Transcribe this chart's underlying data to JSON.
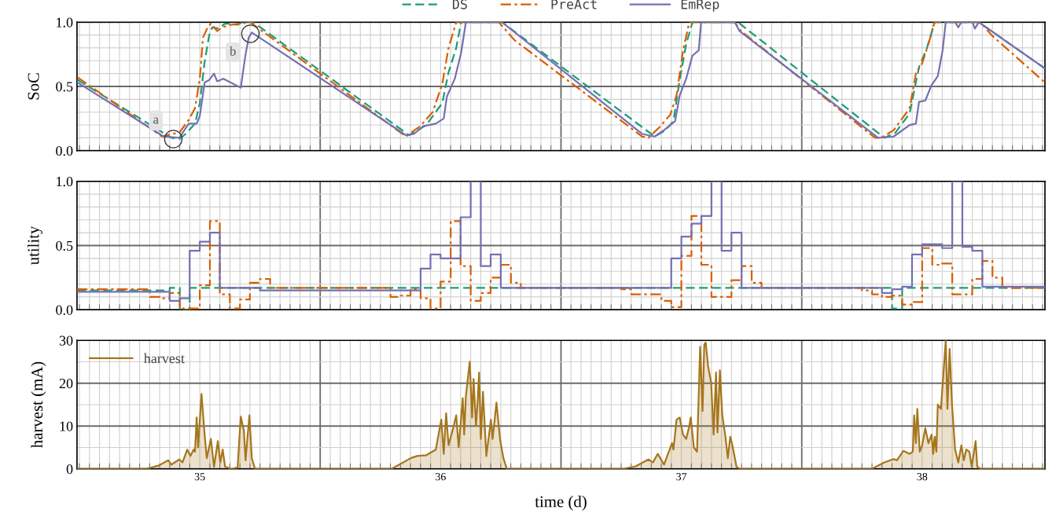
{
  "chart_data": [
    {
      "type": "line",
      "ylabel": "SoC",
      "xlim": [
        34.49,
        38.51
      ],
      "ylim": [
        0,
        1
      ],
      "xticks": [
        35,
        {
          "value": 35.5,
          "label": null
        },
        36,
        {
          "value": 36.5,
          "label": null
        },
        37,
        {
          "value": 37.5,
          "label": null
        },
        38
      ],
      "yticks": [
        {
          "value": 0,
          "label": "0.0"
        },
        {
          "value": 0.5,
          "label": "0.5"
        },
        {
          "value": 1,
          "label": "1.0"
        }
      ],
      "tick_labels": "y",
      "grid": true,
      "legend": "top",
      "annotations": [
        {
          "text": "a",
          "x": 34.89,
          "y": 0.09
        },
        {
          "text": "b",
          "x": 35.21,
          "y": 0.91
        }
      ],
      "series": [
        {
          "name": "DS",
          "color": "#1b9e77",
          "line_style": "dashed",
          "x": [
            34.493,
            34.882,
            34.915,
            34.941,
            34.98,
            35.0,
            35.02,
            35.039,
            35.052,
            35.078,
            35.105,
            35.157,
            35.176,
            35.222,
            35.869,
            35.941,
            36.007,
            36.033,
            36.065,
            36.085,
            36.255,
            36.889,
            36.935,
            36.967,
            36.993,
            37.02,
            37.046,
            37.235,
            37.843,
            37.889,
            37.948,
            37.987,
            38.02,
            38.052,
            38.235,
            38.51
          ],
          "values": [
            0.55,
            0.1,
            0.09,
            0.13,
            0.21,
            0.37,
            0.69,
            0.9,
            0.96,
            0.95,
            0.99,
            0.98,
            1.0,
            1.0,
            0.12,
            0.2,
            0.37,
            0.61,
            0.8,
            1.0,
            1.0,
            0.11,
            0.16,
            0.23,
            0.55,
            0.83,
            1.0,
            1.0,
            0.1,
            0.14,
            0.29,
            0.65,
            0.8,
            1.0,
            1.0,
            0.64
          ]
        },
        {
          "name": "PreAct",
          "color": "#d95f02",
          "line_style": "dashdot",
          "x": [
            34.493,
            34.843,
            34.882,
            34.915,
            34.954,
            34.98,
            35.0,
            35.013,
            35.033,
            35.046,
            35.072,
            35.092,
            35.131,
            35.17,
            35.209,
            35.856,
            35.915,
            35.967,
            36.007,
            36.033,
            36.065,
            36.242,
            36.307,
            36.837,
            36.863,
            36.908,
            36.954,
            36.98,
            37.007,
            37.033,
            37.222,
            37.242,
            37.804,
            37.83,
            37.882,
            37.948,
            37.974,
            38.0,
            38.026,
            38.052,
            38.242,
            38.288,
            38.51
          ],
          "values": [
            0.57,
            0.11,
            0.13,
            0.14,
            0.24,
            0.33,
            0.56,
            0.88,
            0.96,
            0.99,
            0.93,
            0.96,
            0.98,
            0.99,
            1.0,
            0.11,
            0.19,
            0.3,
            0.52,
            0.8,
            1.0,
            1.0,
            0.86,
            0.11,
            0.1,
            0.18,
            0.28,
            0.43,
            0.78,
            1.0,
            1.0,
            0.94,
            0.1,
            0.1,
            0.16,
            0.33,
            0.6,
            0.68,
            0.83,
            1.0,
            1.0,
            0.9,
            0.53
          ]
        },
        {
          "name": "EmRep",
          "color": "#7570b3",
          "line_style": "solid",
          "x": [
            34.493,
            34.85,
            34.915,
            34.954,
            34.987,
            35.0,
            35.02,
            35.039,
            35.059,
            35.072,
            35.098,
            35.17,
            35.19,
            35.203,
            35.216,
            35.248,
            35.856,
            35.889,
            35.928,
            35.98,
            36.013,
            36.026,
            36.059,
            36.085,
            36.105,
            36.255,
            36.837,
            36.889,
            36.928,
            36.974,
            36.993,
            37.02,
            37.046,
            37.072,
            37.082,
            37.222,
            37.242,
            37.817,
            37.882,
            37.948,
            37.974,
            37.987,
            38.013,
            38.039,
            38.065,
            38.085,
            38.098,
            38.137,
            38.15,
            38.163,
            38.209,
            38.219,
            38.235,
            38.51
          ],
          "values": [
            0.53,
            0.11,
            0.1,
            0.21,
            0.21,
            0.27,
            0.53,
            0.55,
            0.6,
            0.54,
            0.56,
            0.49,
            0.75,
            0.88,
            0.92,
            0.88,
            0.12,
            0.13,
            0.19,
            0.21,
            0.25,
            0.42,
            0.56,
            0.76,
            1.0,
            1.0,
            0.13,
            0.11,
            0.16,
            0.23,
            0.43,
            0.56,
            0.74,
            0.78,
            1.0,
            1.0,
            0.93,
            0.1,
            0.11,
            0.2,
            0.21,
            0.38,
            0.39,
            0.51,
            0.58,
            0.78,
            1.0,
            1.0,
            0.96,
            1.0,
            1.0,
            0.95,
            1.0,
            0.64
          ]
        }
      ]
    },
    {
      "type": "step",
      "ylabel": "utility",
      "xlim": [
        34.49,
        38.51
      ],
      "ylim": [
        0,
        1
      ],
      "xticks": [
        35,
        {
          "value": 35.5,
          "label": null
        },
        36,
        {
          "value": 36.5,
          "label": null
        },
        37,
        {
          "value": 37.5,
          "label": null
        },
        38
      ],
      "yticks": [
        {
          "value": 0,
          "label": "0.0"
        },
        {
          "value": 0.5,
          "label": "0.5"
        },
        {
          "value": 1,
          "label": "1.0"
        }
      ],
      "tick_labels": "y",
      "grid": true,
      "series": [
        {
          "color": "#1b9e77",
          "line_style": "dashed",
          "x": [
            34.49,
            34.875,
            34.917,
            34.958,
            37.875,
            37.917,
            38.51
          ],
          "values": [
            0.15,
            0.17,
            0.0,
            0.17,
            0.01,
            0.17,
            0.17
          ]
        },
        {
          "color": "#d95f02",
          "line_style": "dashdot",
          "x": [
            34.49,
            34.792,
            34.833,
            34.875,
            34.917,
            35.0,
            35.042,
            35.083,
            35.125,
            35.167,
            35.208,
            35.25,
            35.292,
            35.792,
            35.833,
            35.875,
            35.917,
            35.958,
            36.0,
            36.042,
            36.083,
            36.125,
            36.167,
            36.208,
            36.25,
            36.292,
            36.333,
            36.75,
            36.792,
            36.917,
            36.958,
            37.0,
            37.042,
            37.083,
            37.125,
            37.208,
            37.25,
            37.292,
            37.333,
            37.75,
            37.792,
            37.833,
            37.875,
            37.917,
            37.958,
            38.0,
            38.042,
            38.083,
            38.125,
            38.208,
            38.25,
            38.292,
            38.333,
            38.51
          ],
          "values": [
            0.16,
            0.1,
            0.09,
            0.13,
            0.01,
            0.19,
            0.69,
            0.12,
            0.01,
            0.08,
            0.21,
            0.24,
            0.17,
            0.1,
            0.11,
            0.16,
            0.09,
            0.01,
            0.22,
            0.69,
            0.34,
            0.07,
            0.13,
            0.25,
            0.35,
            0.21,
            0.17,
            0.16,
            0.12,
            0.07,
            0.02,
            0.42,
            0.73,
            0.35,
            0.1,
            0.23,
            0.34,
            0.21,
            0.17,
            0.15,
            0.12,
            0.1,
            0.11,
            0.04,
            0.06,
            0.48,
            0.35,
            0.36,
            0.12,
            0.24,
            0.38,
            0.25,
            0.17,
            0.17
          ]
        },
        {
          "color": "#7570b3",
          "line_style": "solid",
          "x": [
            34.49,
            34.875,
            34.917,
            34.958,
            35.0,
            35.042,
            35.083,
            35.25,
            35.917,
            35.958,
            36.0,
            36.083,
            36.125,
            36.167,
            36.208,
            36.25,
            36.958,
            37.0,
            37.042,
            37.083,
            37.125,
            37.167,
            37.208,
            37.25,
            37.833,
            37.875,
            37.917,
            37.958,
            38.0,
            38.083,
            38.125,
            38.167,
            38.208,
            38.25,
            38.51
          ],
          "values": [
            0.14,
            0.07,
            0.09,
            0.46,
            0.53,
            0.6,
            0.17,
            0.15,
            0.32,
            0.43,
            0.4,
            0.72,
            1.0,
            0.34,
            0.43,
            0.17,
            0.4,
            0.57,
            0.67,
            0.73,
            1.0,
            0.46,
            0.6,
            0.17,
            0.13,
            0.16,
            0.18,
            0.43,
            0.51,
            0.48,
            1.0,
            0.49,
            0.46,
            0.18,
            0.18
          ]
        }
      ]
    },
    {
      "type": "area",
      "xlabel": "time (d)",
      "ylabel": "harvest (mA)",
      "xlim": [
        34.49,
        38.51
      ],
      "ylim": [
        0,
        30
      ],
      "xticks": [
        35,
        {
          "value": 35.5,
          "label": null
        },
        36,
        {
          "value": 36.5,
          "label": null
        },
        37,
        {
          "value": 37.5,
          "label": null
        },
        38
      ],
      "yticks": [
        0,
        10,
        20,
        30
      ],
      "grid": true,
      "legend": "top left",
      "series": [
        {
          "name": "harvest",
          "color": "#a6761d",
          "x": [
            34.49,
            34.778,
            34.83,
            34.869,
            34.882,
            34.915,
            34.928,
            34.948,
            34.961,
            34.974,
            34.98,
            34.987,
            34.993,
            35.007,
            35.02,
            35.029,
            35.046,
            35.059,
            35.075,
            35.085,
            35.095,
            35.105,
            35.131,
            35.157,
            35.17,
            35.183,
            35.19,
            35.206,
            35.216,
            35.229,
            35.797,
            35.876,
            35.902,
            35.941,
            35.98,
            36.003,
            36.013,
            36.023,
            36.033,
            36.052,
            36.065,
            36.075,
            36.092,
            36.098,
            36.105,
            36.121,
            36.131,
            36.137,
            36.147,
            36.154,
            36.16,
            36.167,
            36.176,
            36.19,
            36.209,
            36.216,
            36.232,
            36.248,
            36.261,
            36.275,
            36.758,
            36.81,
            36.863,
            36.882,
            36.902,
            36.928,
            36.941,
            36.961,
            36.967,
            36.98,
            36.993,
            37.007,
            37.02,
            37.033,
            37.039,
            37.052,
            37.065,
            37.078,
            37.088,
            37.095,
            37.101,
            37.111,
            37.124,
            37.134,
            37.144,
            37.15,
            37.16,
            37.17,
            37.183,
            37.193,
            37.203,
            37.212,
            37.229,
            37.242,
            37.791,
            37.843,
            37.882,
            37.895,
            37.922,
            37.948,
            37.961,
            37.967,
            37.974,
            37.98,
            37.99,
            38.0,
            38.013,
            38.026,
            38.039,
            38.046,
            38.052,
            38.059,
            38.065,
            38.078,
            38.098,
            38.105,
            38.114,
            38.124,
            38.137,
            38.15,
            38.163,
            38.173,
            38.183,
            38.196,
            38.206,
            38.222,
            38.229,
            38.242,
            38.51
          ],
          "values": [
            0,
            0,
            0.8,
            2,
            1,
            2.2,
            1.5,
            4.5,
            3,
            4.5,
            4,
            12,
            5,
            17.5,
            8,
            2.5,
            7,
            0.5,
            6.5,
            1.5,
            4.5,
            0.5,
            0,
            0.3,
            12.2,
            9,
            2,
            12.5,
            2.5,
            0,
            0,
            2.5,
            3,
            3.2,
            4.5,
            11.5,
            3.5,
            13,
            5.5,
            9.5,
            12.5,
            5,
            16.5,
            8,
            17,
            25,
            12,
            21,
            10,
            16,
            22.5,
            7,
            18,
            3,
            11.5,
            7,
            15.5,
            6.5,
            2.5,
            0,
            0,
            0.6,
            2.2,
            1.5,
            3.5,
            1,
            3,
            6,
            4.5,
            11.5,
            12,
            8,
            7,
            10,
            12,
            5,
            4,
            28.5,
            13.5,
            29,
            29.5,
            24,
            20,
            8,
            22.5,
            8.5,
            23,
            12.5,
            7.5,
            2.5,
            7.5,
            5.5,
            0.5,
            0,
            0,
            1.5,
            2.3,
            2,
            4.2,
            3.5,
            4,
            12.5,
            6,
            14,
            4,
            5.5,
            9.5,
            6,
            8,
            3.5,
            7.5,
            4,
            15,
            14,
            30,
            14,
            28,
            15,
            4.5,
            1.5,
            5.5,
            2,
            4.5,
            4,
            0.5,
            6.5,
            0.5,
            0,
            0
          ]
        }
      ]
    }
  ]
}
